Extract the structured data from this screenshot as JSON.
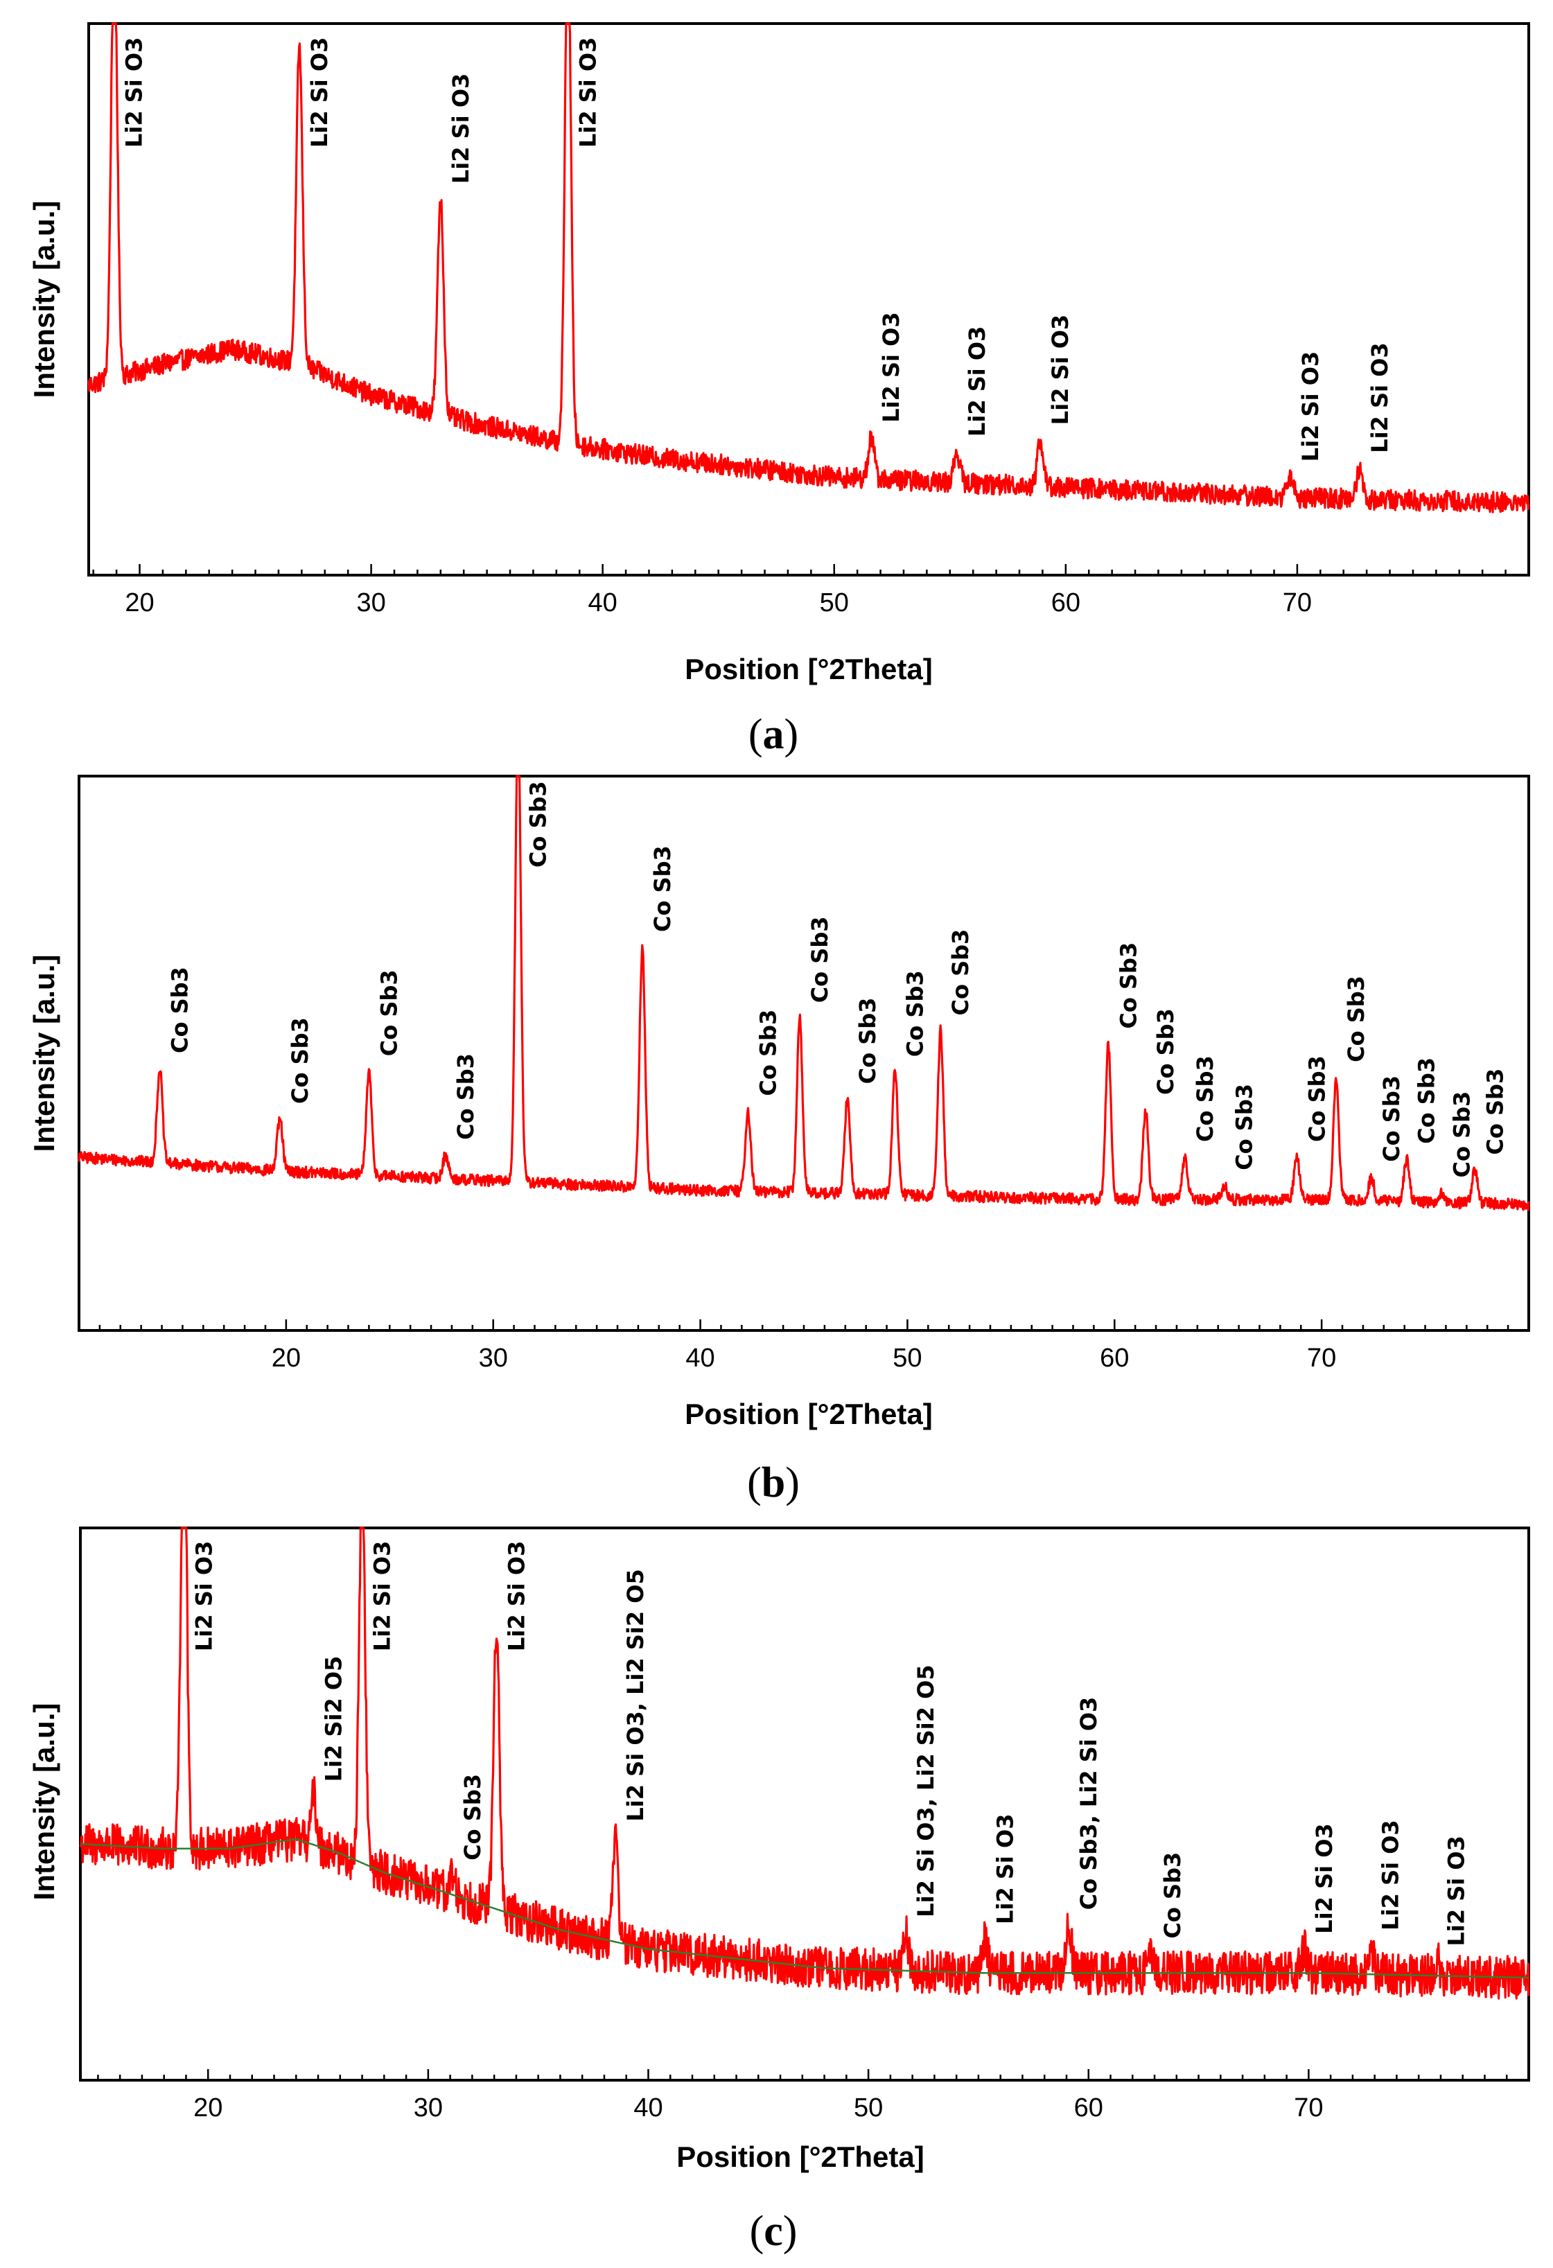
{
  "chart_data": [
    {
      "type": "line",
      "panel": "a",
      "panel_label": "a",
      "xlabel": "Position [°2Theta]",
      "ylabel": "Intensity [a.u.]",
      "xlim": [
        17.8,
        80
      ],
      "xticks": [
        20,
        30,
        40,
        50,
        60,
        70
      ],
      "ylim": [
        0,
        100
      ],
      "background_curve": false,
      "baseline": [
        [
          17.8,
          29
        ],
        [
          21,
          33
        ],
        [
          24,
          36
        ],
        [
          27,
          33
        ],
        [
          30,
          27
        ],
        [
          34,
          22
        ],
        [
          38,
          18
        ],
        [
          42,
          15
        ],
        [
          50,
          11
        ],
        [
          60,
          9
        ],
        [
          70,
          7
        ],
        [
          80,
          6
        ]
      ],
      "noise": 2.0,
      "peaks": [
        {
          "x": 18.9,
          "height": 88,
          "label": "Li2 Si O3"
        },
        {
          "x": 26.9,
          "height": 62,
          "label": "Li2 Si O3"
        },
        {
          "x": 33.0,
          "height": 42,
          "label": "Li2 Si O3"
        },
        {
          "x": 38.5,
          "height": 100,
          "label": "Li2 Si O3"
        },
        {
          "x": 51.6,
          "height": 8,
          "label": "Li2 Si O3"
        },
        {
          "x": 55.3,
          "height": 6,
          "label": "Li2 Si O3"
        },
        {
          "x": 58.9,
          "height": 9,
          "label": "Li2 Si O3"
        },
        {
          "x": 69.7,
          "height": 4,
          "label": "Li2 Si O3"
        },
        {
          "x": 72.7,
          "height": 6,
          "label": "Li2 Si O3"
        }
      ]
    },
    {
      "type": "line",
      "panel": "b",
      "panel_label": "b",
      "xlabel": "Position [°2Theta]",
      "ylabel": "Intensity [a.u.]",
      "xlim": [
        10,
        80
      ],
      "xticks": [
        20,
        30,
        40,
        50,
        60,
        70
      ],
      "ylim": [
        0,
        100
      ],
      "background_curve": false,
      "baseline": [
        [
          10,
          25
        ],
        [
          20,
          22
        ],
        [
          30,
          20
        ],
        [
          40,
          18
        ],
        [
          50,
          17
        ],
        [
          60,
          16
        ],
        [
          70,
          16
        ],
        [
          80,
          15
        ]
      ],
      "noise": 1.2,
      "peaks": [
        {
          "x": 13.9,
          "height": 20,
          "label": "Co Sb3"
        },
        {
          "x": 19.7,
          "height": 11,
          "label": "Co Sb3"
        },
        {
          "x": 24.0,
          "height": 22,
          "label": "Co Sb3"
        },
        {
          "x": 27.7,
          "height": 5,
          "label": "Co Sb3"
        },
        {
          "x": 31.2,
          "height": 100,
          "label": "Co Sb3"
        },
        {
          "x": 37.2,
          "height": 51,
          "label": "Co Sb3"
        },
        {
          "x": 42.3,
          "height": 17,
          "label": "Co Sb3"
        },
        {
          "x": 44.8,
          "height": 37,
          "label": "Co Sb3"
        },
        {
          "x": 47.1,
          "height": 20,
          "label": "Co Sb3"
        },
        {
          "x": 49.4,
          "height": 26,
          "label": "Co Sb3"
        },
        {
          "x": 51.6,
          "height": 35,
          "label": "Co Sb3"
        },
        {
          "x": 59.7,
          "height": 33,
          "label": "Co Sb3"
        },
        {
          "x": 61.5,
          "height": 19,
          "label": "Co Sb3"
        },
        {
          "x": 63.4,
          "height": 9,
          "label": "Co Sb3"
        },
        {
          "x": 65.3,
          "height": 3,
          "label": "Co Sb3"
        },
        {
          "x": 68.8,
          "height": 9,
          "label": "Co Sb3"
        },
        {
          "x": 70.7,
          "height": 26,
          "label": "Co Sb3"
        },
        {
          "x": 72.4,
          "height": 5,
          "label": "Co Sb3"
        },
        {
          "x": 74.1,
          "height": 9,
          "label": "Co Sb3"
        },
        {
          "x": 75.8,
          "height": 2,
          "label": "Co Sb3"
        },
        {
          "x": 77.4,
          "height": 7,
          "label": "Co Sb3"
        }
      ]
    },
    {
      "type": "line",
      "panel": "c",
      "panel_label": "c",
      "xlabel": "Position [°2Theta]",
      "ylabel": "Intensity [a.u.]",
      "xlim": [
        14.2,
        80
      ],
      "xticks": [
        20,
        30,
        40,
        50,
        60,
        70
      ],
      "ylim": [
        0,
        100
      ],
      "background_curve": true,
      "baseline": [
        [
          14.2,
          39
        ],
        [
          18,
          38
        ],
        [
          21,
          38
        ],
        [
          24,
          40
        ],
        [
          26,
          37
        ],
        [
          28,
          33
        ],
        [
          32,
          27
        ],
        [
          36,
          21
        ],
        [
          40,
          17
        ],
        [
          44,
          15
        ],
        [
          48,
          13
        ],
        [
          55,
          12
        ],
        [
          60,
          12
        ],
        [
          70,
          12
        ],
        [
          80,
          11
        ]
      ],
      "noise": 4.5,
      "peaks": [
        {
          "x": 18.9,
          "height": 100,
          "label": "Li2 Si O3"
        },
        {
          "x": 24.8,
          "height": 10,
          "label": "Li2 Si2 O5"
        },
        {
          "x": 27.0,
          "height": 82,
          "label": "Li2 Si O3"
        },
        {
          "x": 31.1,
          "height": 4,
          "label": "Co Sb3"
        },
        {
          "x": 33.1,
          "height": 60,
          "label": "Li2 Si O3"
        },
        {
          "x": 38.5,
          "height": 22,
          "label": "Li2 Si O3, Li2 Si2 O5"
        },
        {
          "x": 51.7,
          "height": 8,
          "label": "Li2 Si O3, Li2 Si2 O5"
        },
        {
          "x": 55.3,
          "height": 7,
          "label": "Li2 Si O3"
        },
        {
          "x": 59.1,
          "height": 10,
          "label": "Co Sb3,  Li2 Si O3"
        },
        {
          "x": 62.9,
          "height": 4,
          "label": "Co Sb3"
        },
        {
          "x": 69.8,
          "height": 5,
          "label": "Li2 Si O3"
        },
        {
          "x": 72.8,
          "height": 6,
          "label": "Li2 Si O3"
        },
        {
          "x": 75.8,
          "height": 3,
          "label": "Li2 Si O3"
        }
      ]
    }
  ]
}
